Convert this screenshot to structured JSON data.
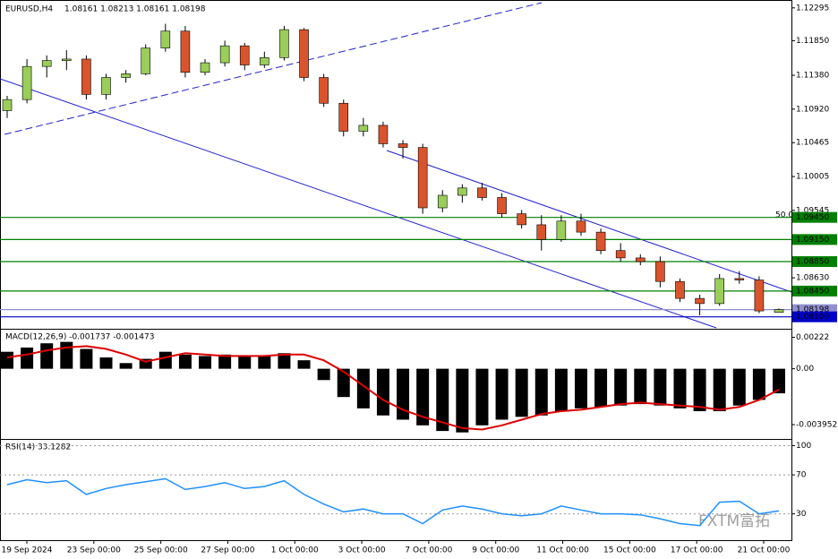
{
  "chart_data": [
    {
      "type": "candlestick",
      "title": "EURUSD,H4",
      "subtitle": "1.08161 1.08213 1.08161 1.08198",
      "ylim": [
        1.0795,
        1.1239
      ],
      "yticks": [
        {
          "value": 1.12295,
          "label": "1.12295"
        },
        {
          "value": 1.1185,
          "label": "1.11850"
        },
        {
          "value": 1.1138,
          "label": "1.11380"
        },
        {
          "value": 1.1092,
          "label": "1.10920"
        },
        {
          "value": 1.10465,
          "label": "1.10465"
        },
        {
          "value": 1.10005,
          "label": "1.10005"
        },
        {
          "value": 1.09545,
          "label": "1.09545"
        },
        {
          "value": 1.0863,
          "label": "1.08630"
        }
      ],
      "levels": [
        {
          "value": 1.0945,
          "label": "1.09450",
          "color": "#008000"
        },
        {
          "value": 1.0915,
          "label": "1.09150",
          "color": "#008000"
        },
        {
          "value": 1.0885,
          "label": "1.08850",
          "color": "#008000"
        },
        {
          "value": 1.0845,
          "label": "1.08450",
          "color": "#008000"
        },
        {
          "value": 1.08198,
          "label": "1.08198",
          "color": "#9090d0"
        },
        {
          "value": 1.081,
          "label": "1.08100",
          "color": "#0000cc"
        }
      ],
      "annotations": [
        "50.0"
      ],
      "up_color": "#9acd5a",
      "down_color": "#d9542c",
      "x_labels": [
        "19 Sep 2024",
        "23 Sep 00:00",
        "25 Sep 00:00",
        "27 Sep 00:00",
        "1 Oct 00:00",
        "3 Oct 00:00",
        "7 Oct 00:00",
        "9 Oct 00:00",
        "11 Oct 00:00",
        "15 Oct 00:00",
        "17 Oct 00:00",
        "21 Oct 00:00"
      ],
      "open": [
        1.109,
        1.1105,
        1.115,
        1.1158,
        1.116,
        1.1112,
        1.1135,
        1.114,
        1.1175,
        1.1198,
        1.1142,
        1.1155,
        1.1178,
        1.1152,
        1.1162,
        1.12,
        1.1135,
        1.11,
        1.1062,
        1.107,
        1.1045,
        1.104,
        1.0958,
        1.0975,
        1.0985,
        1.0972,
        1.095,
        1.0935,
        1.0915,
        1.094,
        1.0925,
        1.09,
        1.089,
        1.0885,
        1.0858,
        1.0835,
        1.0828,
        1.0862,
        1.086,
        1.08161
      ],
      "high": [
        1.111,
        1.116,
        1.1165,
        1.1172,
        1.1165,
        1.114,
        1.1145,
        1.118,
        1.1208,
        1.1205,
        1.116,
        1.1185,
        1.1182,
        1.117,
        1.1205,
        1.1202,
        1.114,
        1.1105,
        1.108,
        1.1075,
        1.105,
        1.1045,
        1.0982,
        1.099,
        1.0992,
        1.0978,
        1.0955,
        1.0948,
        1.0948,
        1.095,
        1.093,
        1.091,
        1.0895,
        1.0892,
        1.0862,
        1.084,
        1.0868,
        1.0872,
        1.0865,
        1.08213
      ],
      "low": [
        1.108,
        1.11,
        1.1135,
        1.1145,
        1.1105,
        1.1105,
        1.1128,
        1.1138,
        1.117,
        1.1135,
        1.1138,
        1.115,
        1.1145,
        1.1148,
        1.1158,
        1.113,
        1.1095,
        1.1055,
        1.1055,
        1.104,
        1.1025,
        1.095,
        1.0952,
        1.0965,
        1.0968,
        1.0945,
        1.093,
        1.09,
        1.0912,
        1.092,
        1.0895,
        1.0885,
        1.088,
        1.085,
        1.083,
        1.0812,
        1.0825,
        1.0855,
        1.0815,
        1.08161
      ],
      "close": [
        1.1105,
        1.115,
        1.1158,
        1.116,
        1.1112,
        1.1135,
        1.114,
        1.1175,
        1.1198,
        1.1142,
        1.1155,
        1.1178,
        1.1152,
        1.1162,
        1.12,
        1.1135,
        1.11,
        1.1062,
        1.107,
        1.1045,
        1.104,
        1.0958,
        1.0975,
        1.0985,
        1.0972,
        1.095,
        1.0935,
        1.0915,
        1.094,
        1.0925,
        1.09,
        1.089,
        1.0885,
        1.0858,
        1.0835,
        1.0828,
        1.0862,
        1.086,
        1.0818,
        1.08198
      ]
    },
    {
      "type": "macd",
      "title": "MACD(12,26,9) -0.001737 -0.001473",
      "ylim": [
        -0.0049,
        0.0027
      ],
      "yticks": [
        0.00222,
        {
          "value": 0,
          "label": "0.00"
        },
        -0.003952
      ],
      "hist_color": "#000000",
      "signal_color": "#e00000",
      "hist": [
        0.0012,
        0.0015,
        0.0018,
        0.0019,
        0.0014,
        0.0008,
        0.0004,
        0.0007,
        0.0012,
        0.001,
        0.0009,
        0.001,
        0.0009,
        0.0009,
        0.0011,
        0.0006,
        -0.0008,
        -0.002,
        -0.0028,
        -0.0033,
        -0.0036,
        -0.004,
        -0.0044,
        -0.0045,
        -0.004,
        -0.0036,
        -0.0034,
        -0.0033,
        -0.003,
        -0.0028,
        -0.0027,
        -0.0026,
        -0.0025,
        -0.0026,
        -0.0028,
        -0.003,
        -0.003,
        -0.0026,
        -0.0022,
        -0.001737
      ],
      "signal": [
        0.0008,
        0.001,
        0.0013,
        0.0015,
        0.0016,
        0.0014,
        0.001,
        0.0005,
        0.0008,
        0.0011,
        0.001,
        0.0009,
        0.0009,
        0.0009,
        0.001,
        0.001,
        0.0006,
        -0.0002,
        -0.0012,
        -0.0022,
        -0.0029,
        -0.0034,
        -0.0038,
        -0.0042,
        -0.0043,
        -0.004,
        -0.0036,
        -0.0032,
        -0.003,
        -0.0029,
        -0.0027,
        -0.0025,
        -0.0024,
        -0.0025,
        -0.0026,
        -0.0027,
        -0.0029,
        -0.0027,
        -0.0022,
        -0.001473
      ]
    },
    {
      "type": "rsi",
      "title": "RSI(14) 33.1282",
      "ylim": [
        3,
        105
      ],
      "yticks": [
        100,
        70,
        30
      ],
      "color": "#1e90ff",
      "values": [
        60,
        65,
        62,
        64,
        50,
        56,
        60,
        63,
        66,
        55,
        58,
        62,
        56,
        58,
        64,
        50,
        40,
        32,
        35,
        30,
        30,
        20,
        34,
        38,
        35,
        30,
        28,
        30,
        38,
        34,
        30,
        30,
        29,
        25,
        20,
        18,
        42,
        43,
        30,
        33.1282
      ]
    }
  ],
  "watermark": "FXTM富拓"
}
